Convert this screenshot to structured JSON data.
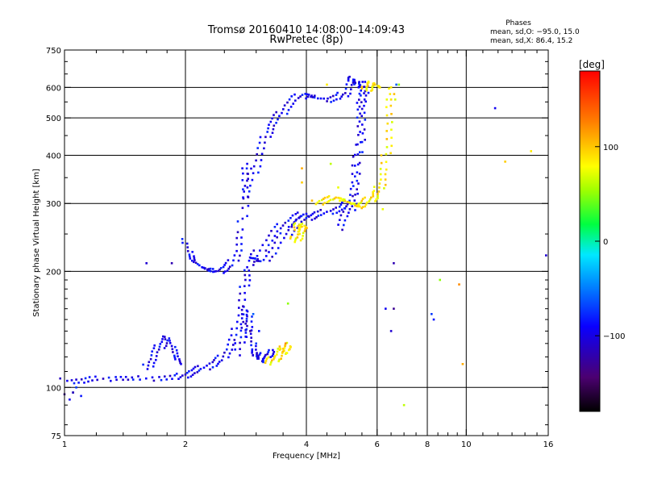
{
  "chart_data": {
    "type": "scatter",
    "title": "Tromsø 20160410 14:08:00–14:09:43",
    "subtitle": "RwPretec (8p)",
    "xlabel": "Frequency [MHz]",
    "ylabel": "Stationary phase Virtual Height [km]",
    "x_scale": "log",
    "y_scale": "log",
    "xlim": [
      1,
      16
    ],
    "ylim": [
      75,
      750
    ],
    "x_ticks": [
      "1",
      "2",
      "4",
      "6",
      "8",
      "10",
      "16"
    ],
    "y_ticks": [
      "75",
      "100",
      "200",
      "300",
      "400",
      "500",
      "600",
      "750"
    ],
    "x_minor_ticks": [
      1.2,
      1.4,
      1.6,
      1.8,
      2.5,
      3,
      3.5,
      4.5,
      5,
      5.5,
      6.5,
      7,
      7.5,
      8.5,
      9,
      9.5,
      11,
      12,
      13,
      14,
      15
    ],
    "y_minor_ticks": [
      80,
      90,
      110,
      120,
      130,
      140,
      150,
      160,
      170,
      180,
      190,
      250,
      350,
      450,
      550,
      650,
      700
    ],
    "x_grid": [
      2,
      4,
      6,
      8,
      10
    ],
    "y_grid": [
      100,
      200,
      300,
      400,
      500,
      600
    ],
    "colorbar": {
      "label": "[deg]",
      "range": [
        -180,
        180
      ],
      "ticks": [
        "100",
        "0",
        "−100"
      ],
      "tick_values": [
        100,
        0,
        -100
      ]
    },
    "stats": {
      "heading": "Phases",
      "line1": "mean, sd,O: −95.0, 15.0",
      "line2": "mean, sd,X:  86.4, 15.2"
    },
    "series": [
      {
        "phase_deg": -95,
        "traces": [
          [
            [
              1.0,
              104
            ],
            [
              1.1,
              104
            ],
            [
              1.2,
              105
            ],
            [
              1.35,
              106
            ],
            [
              1.5,
              105
            ],
            [
              1.7,
              106
            ],
            [
              1.9,
              106
            ],
            [
              2.0,
              108
            ],
            [
              2.1,
              110
            ],
            [
              2.2,
              112
            ],
            [
              2.35,
              115
            ],
            [
              2.45,
              118
            ],
            [
              2.55,
              125
            ],
            [
              2.65,
              135
            ],
            [
              2.72,
              150
            ],
            [
              2.78,
              170
            ],
            [
              2.82,
              190
            ],
            [
              2.85,
              205
            ]
          ],
          [
            [
              1.6,
              112
            ],
            [
              1.65,
              118
            ],
            [
              1.7,
              125
            ],
            [
              1.75,
              130
            ],
            [
              1.8,
              135
            ],
            [
              1.85,
              128
            ],
            [
              1.9,
              120
            ],
            [
              1.95,
              115
            ]
          ],
          [
            [
              2.0,
              240
            ],
            [
              2.05,
              222
            ],
            [
              2.1,
              212
            ],
            [
              2.2,
              205
            ],
            [
              2.3,
              201
            ],
            [
              2.4,
              200
            ],
            [
              2.5,
              203
            ],
            [
              2.6,
              208
            ],
            [
              2.7,
              225
            ],
            [
              2.75,
              250
            ],
            [
              2.8,
              300
            ],
            [
              2.83,
              350
            ],
            [
              2.85,
              380
            ]
          ],
          [
            [
              2.7,
              122
            ],
            [
              2.75,
              135
            ],
            [
              2.8,
              150
            ],
            [
              2.85,
              160
            ],
            [
              2.88,
              145
            ],
            [
              2.9,
              135
            ],
            [
              2.95,
              125
            ],
            [
              3.0,
              120
            ],
            [
              3.05,
              118
            ],
            [
              3.1,
              120
            ],
            [
              3.2,
              122
            ],
            [
              3.3,
              125
            ]
          ],
          [
            [
              2.95,
              215
            ],
            [
              3.1,
              212
            ],
            [
              3.3,
              225
            ],
            [
              3.5,
              245
            ],
            [
              3.7,
              260
            ],
            [
              3.9,
              272
            ],
            [
              4.1,
              278
            ],
            [
              4.3,
              282
            ],
            [
              4.6,
              287
            ],
            [
              4.9,
              292
            ],
            [
              5.1,
              300
            ],
            [
              5.25,
              330
            ],
            [
              5.35,
              380
            ],
            [
              5.42,
              450
            ],
            [
              5.47,
              520
            ],
            [
              5.5,
              580
            ],
            [
              5.52,
              620
            ]
          ],
          [
            [
              2.9,
              210
            ],
            [
              3.0,
              220
            ],
            [
              3.2,
              240
            ],
            [
              3.4,
              258
            ],
            [
              3.6,
              268
            ],
            [
              3.8,
              278
            ],
            [
              4.0,
              282
            ]
          ],
          [
            [
              2.8,
              310
            ],
            [
              2.9,
              340
            ],
            [
              3.0,
              380
            ],
            [
              3.1,
              420
            ],
            [
              3.2,
              460
            ],
            [
              3.3,
              485
            ],
            [
              3.45,
              510
            ],
            [
              3.6,
              540
            ],
            [
              3.8,
              565
            ],
            [
              4.0,
              575
            ],
            [
              4.2,
              565
            ],
            [
              4.5,
              558
            ],
            [
              4.8,
              565
            ],
            [
              5.0,
              580
            ],
            [
              5.15,
              620
            ],
            [
              5.25,
              630
            ],
            [
              5.35,
              615
            ],
            [
              5.4,
              600
            ]
          ],
          [
            [
              4.8,
              260
            ],
            [
              5.0,
              280
            ],
            [
              5.2,
              295
            ],
            [
              5.35,
              350
            ],
            [
              5.45,
              420
            ],
            [
              5.5,
              500
            ],
            [
              5.55,
              560
            ],
            [
              5.6,
              620
            ]
          ]
        ],
        "points": [
          [
            1.0,
            96
          ],
          [
            1.05,
            97
          ],
          [
            1.07,
            100
          ],
          [
            1.1,
            95
          ],
          [
            1.03,
            93
          ],
          [
            1.6,
            210
          ],
          [
            1.85,
            210
          ],
          [
            2.9,
            140
          ],
          [
            2.95,
            155
          ],
          [
            3.0,
            130
          ],
          [
            3.05,
            140
          ],
          [
            6.3,
            160
          ],
          [
            6.5,
            140
          ],
          [
            6.6,
            210
          ],
          [
            6.6,
            160
          ],
          [
            6.7,
            610
          ],
          [
            8.2,
            155
          ],
          [
            8.3,
            150
          ],
          [
            11.8,
            530
          ],
          [
            15.8,
            220
          ],
          [
            1.05,
            97
          ]
        ]
      },
      {
        "phase_deg": 86,
        "traces": [
          [
            [
              5.3,
              295
            ],
            [
              5.5,
              298
            ],
            [
              5.7,
              305
            ],
            [
              5.9,
              312
            ],
            [
              6.0,
              320
            ],
            [
              6.15,
              340
            ],
            [
              6.25,
              370
            ],
            [
              6.35,
              420
            ],
            [
              6.45,
              480
            ],
            [
              6.5,
              550
            ],
            [
              6.5,
              600
            ]
          ],
          [
            [
              4.2,
              300
            ],
            [
              4.4,
              305
            ],
            [
              4.6,
              308
            ],
            [
              4.8,
              310
            ],
            [
              5.0,
              305
            ],
            [
              5.2,
              300
            ],
            [
              5.4,
              296
            ]
          ],
          [
            [
              5.6,
              590
            ],
            [
              5.7,
              600
            ],
            [
              5.8,
              610
            ],
            [
              5.9,
              615
            ],
            [
              6.0,
              605
            ],
            [
              6.1,
              600
            ]
          ],
          [
            [
              3.7,
              240
            ],
            [
              3.8,
              245
            ],
            [
              3.9,
              255
            ],
            [
              4.0,
              262
            ],
            [
              3.75,
              265
            ],
            [
              3.85,
              250
            ]
          ],
          [
            [
              3.2,
              115
            ],
            [
              3.3,
              118
            ],
            [
              3.4,
              120
            ],
            [
              3.5,
              125
            ],
            [
              3.6,
              130
            ],
            [
              3.55,
              122
            ],
            [
              3.45,
              126
            ]
          ]
        ],
        "points": [
          [
            3.6,
            165
          ],
          [
            3.55,
            130
          ],
          [
            3.9,
            370
          ],
          [
            3.9,
            340
          ],
          [
            4.5,
            610
          ],
          [
            4.8,
            330
          ],
          [
            7.0,
            90
          ],
          [
            8.6,
            190
          ],
          [
            9.6,
            185
          ],
          [
            9.8,
            115
          ],
          [
            12.5,
            385
          ],
          [
            14.5,
            410
          ],
          [
            6.2,
            290
          ],
          [
            4.6,
            380
          ],
          [
            6.8,
            610
          ]
        ]
      }
    ]
  }
}
